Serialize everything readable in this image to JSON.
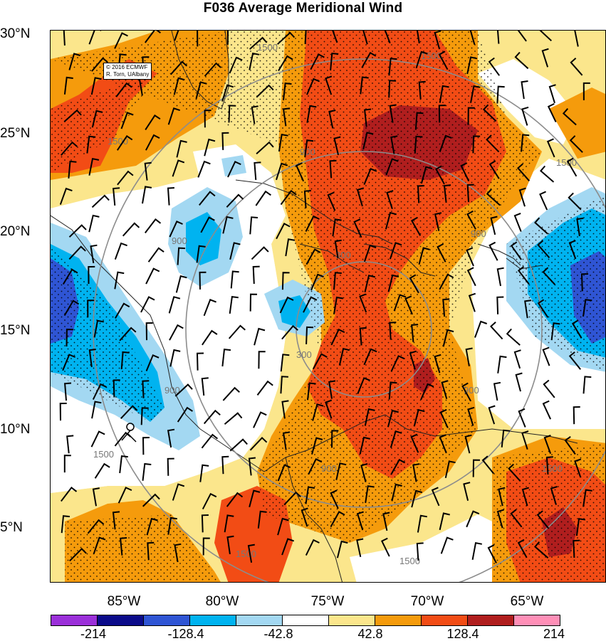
{
  "title": "F036 Average Meridional Wind",
  "credit": {
    "line1": "© 2016 ECMWF",
    "line2": "R. Torn, UAlbany"
  },
  "lat_labels": [
    "30°N",
    "25°N",
    "20°N",
    "15°N",
    "10°N",
    "5°N"
  ],
  "lon_labels": [
    "85°W",
    "80°W",
    "75°W",
    "70°W",
    "65°W"
  ],
  "contour_labels": [
    "1500",
    "900",
    "300"
  ],
  "colorbar": {
    "colors": [
      "#9b30d9",
      "#0b0b8a",
      "#2f55d4",
      "#00b3f0",
      "#a3d8f2",
      "#ffffff",
      "#fbe68c",
      "#f59b0c",
      "#f24c15",
      "#b01e1e",
      "#ff8fb7"
    ],
    "tick_labels": [
      "-214",
      "-128.4",
      "-42.8",
      "42.8",
      "128.4",
      "214"
    ]
  },
  "colors": {
    "positive_strong": "#b01e1e",
    "positive_high": "#f24c15",
    "positive_mid": "#f59b0c",
    "positive_low": "#fbe68c",
    "negative_low": "#a3d8f2",
    "negative_mid": "#00b3f0",
    "negative_high": "#2f55d4",
    "radial_contours": "#8c8c8c"
  }
}
